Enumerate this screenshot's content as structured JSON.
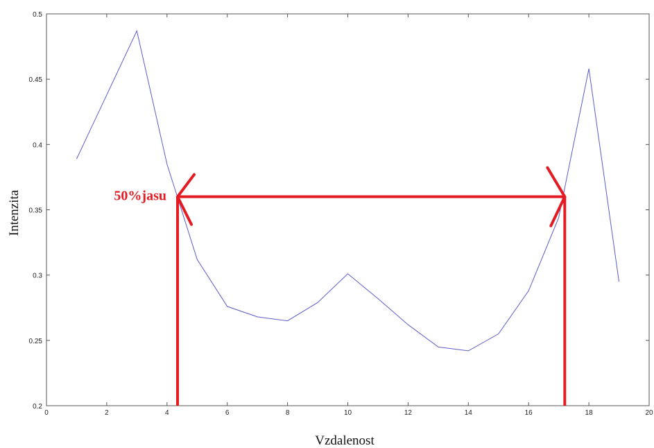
{
  "chart_data": {
    "type": "line",
    "title": "",
    "xlabel": "Vzdalenost",
    "ylabel": "Intenzita",
    "xlim": [
      0,
      20
    ],
    "ylim": [
      0.2,
      0.5
    ],
    "x_ticks": [
      0,
      2,
      4,
      6,
      8,
      10,
      12,
      14,
      16,
      18,
      20
    ],
    "y_ticks": [
      0.2,
      0.25,
      0.3,
      0.35,
      0.4,
      0.45,
      0.5
    ],
    "x_tick_labels": [
      "0",
      "2",
      "4",
      "6",
      "8",
      "10",
      "12",
      "14",
      "16",
      "18",
      "20"
    ],
    "y_tick_labels": [
      "0.2",
      "0.25",
      "0.3",
      "0.35",
      "0.4",
      "0.45",
      "0.5"
    ],
    "grid": false,
    "series": [
      {
        "x": [
          1,
          2,
          3,
          4,
          5,
          6,
          7,
          8,
          9,
          10,
          11,
          12,
          13,
          14,
          15,
          16,
          17,
          18,
          19
        ],
        "values": [
          0.389,
          0.438,
          0.487,
          0.385,
          0.312,
          0.276,
          0.268,
          0.265,
          0.279,
          0.301,
          0.282,
          0.262,
          0.245,
          0.242,
          0.255,
          0.288,
          0.344,
          0.458,
          0.295
        ]
      }
    ],
    "annotation": {
      "text": "50%jasu",
      "y_level": 0.36,
      "x_start": 4.35,
      "x_end": 17.2
    },
    "colors": {
      "series": "#5a5acc",
      "annotation": "#e31b23",
      "axes": "#555555"
    }
  }
}
